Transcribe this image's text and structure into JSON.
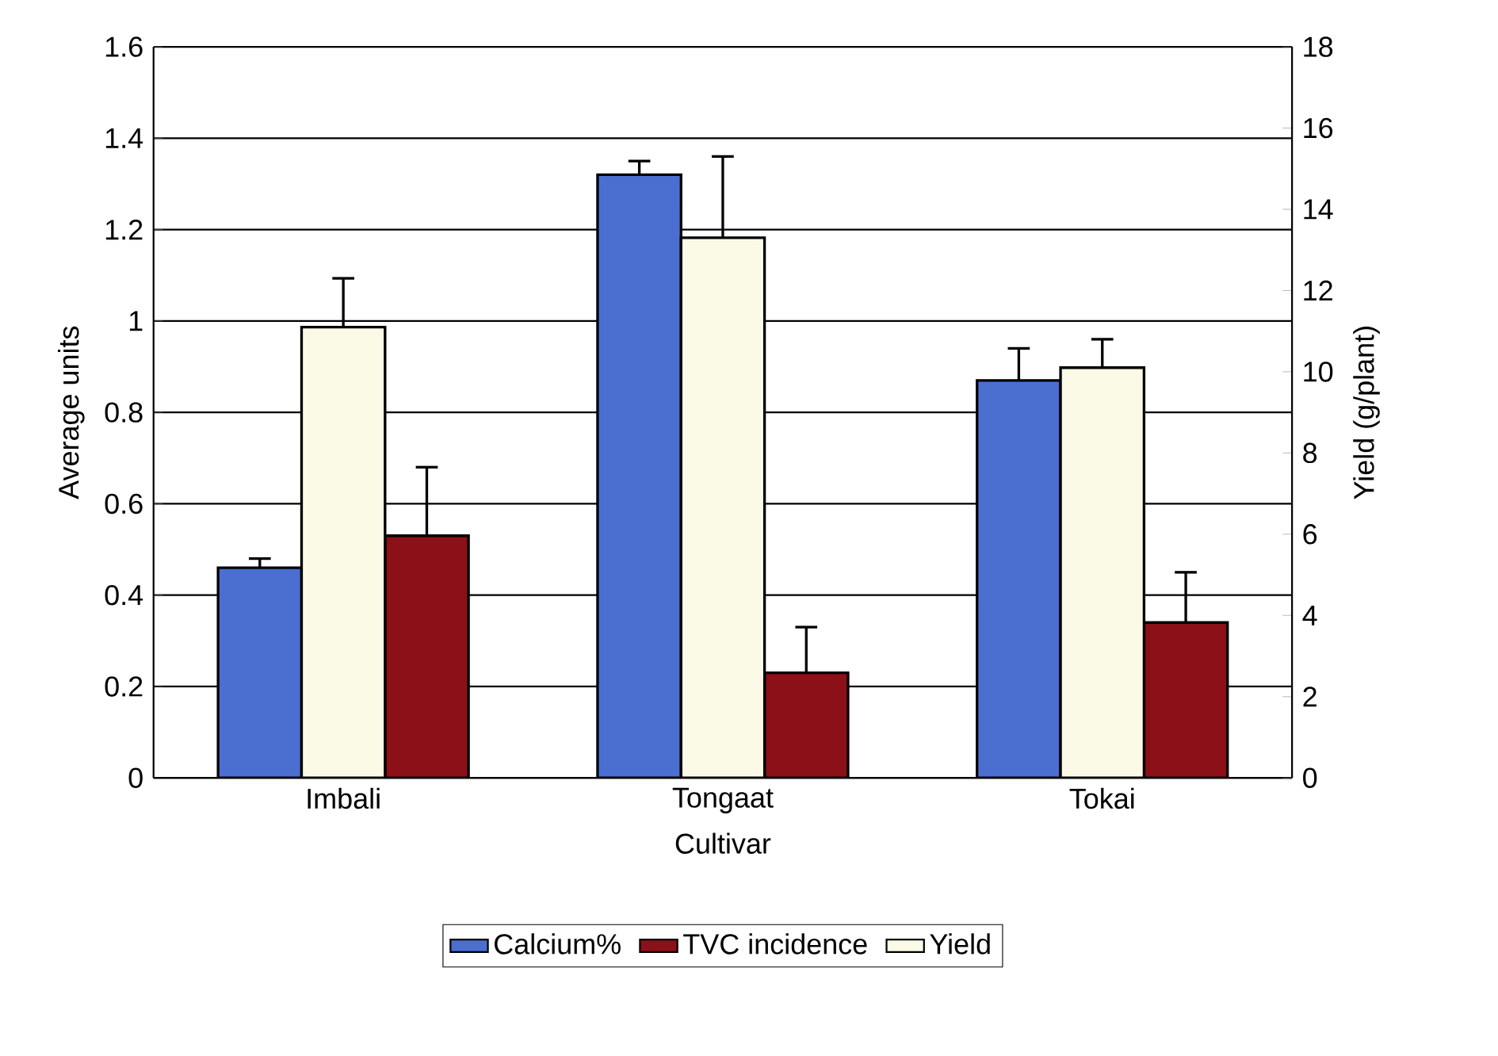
{
  "chart_data": {
    "type": "bar",
    "xlabel": "Cultivar",
    "ylabel": "Average units",
    "y2label": "Yield (g/plant)",
    "categories": [
      "Imbali",
      "Tongaat",
      "Tokai"
    ],
    "series": [
      {
        "name": "Calcium%",
        "color": "#4a6fd0",
        "values": [
          0.46,
          1.32,
          0.87
        ],
        "errors": [
          [
            0.46,
            0.48
          ],
          [
            1.32,
            1.35
          ],
          [
            0.87,
            0.94
          ]
        ]
      },
      {
        "name": "Yield",
        "color": "#fafae6",
        "axis": "y2",
        "values": [
          11.1,
          13.3,
          10.1
        ],
        "errors": [
          [
            11.1,
            12.3
          ],
          [
            13.3,
            15.3
          ],
          [
            10.1,
            10.8
          ]
        ]
      },
      {
        "name": "TVC incidence",
        "color": "#8b1018",
        "values": [
          0.53,
          0.23,
          0.34
        ],
        "errors": [
          [
            0.53,
            0.68
          ],
          [
            0.23,
            0.33
          ],
          [
            0.34,
            0.45
          ]
        ]
      }
    ],
    "ylim": [
      0,
      1.6
    ],
    "yticks": [
      0,
      0.2,
      0.4,
      0.6,
      0.8,
      1,
      1.2,
      1.4,
      1.6
    ],
    "y2lim": [
      0,
      18
    ],
    "y2ticks": [
      0,
      2,
      4,
      6,
      8,
      10,
      12,
      14,
      16,
      18
    ],
    "grid": "y",
    "legend": "bottom"
  }
}
